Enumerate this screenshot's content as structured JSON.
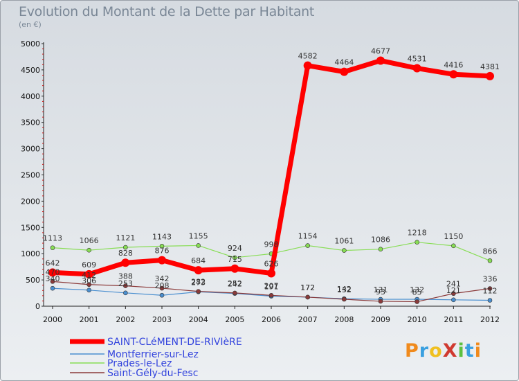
{
  "title": "Evolution du Montant de la Dette par Habitant",
  "subtitle": "(en €)",
  "logo": "ProXiti",
  "chart_data": {
    "type": "line",
    "x": [
      "2000",
      "2001",
      "2002",
      "2003",
      "2004",
      "2005",
      "2006",
      "2007",
      "2008",
      "2009",
      "2010",
      "2011",
      "2012"
    ],
    "ylim": [
      0,
      5000
    ],
    "yticks": [
      0,
      500,
      1000,
      1500,
      2000,
      2500,
      3000,
      3500,
      4000,
      4500,
      5000
    ],
    "grid": false,
    "legend": "bottom-left",
    "series": [
      {
        "name": "SAINT-CLéMENT-DE-RIVIèRE",
        "color": "#ff0000",
        "values": [
          642,
          609,
          828,
          876,
          684,
          715,
          626,
          4582,
          4464,
          4677,
          4531,
          4416,
          4381
        ],
        "labels": [
          "642",
          "609",
          "828",
          "876",
          "684",
          "715",
          "626",
          "4582",
          "4464",
          "4677",
          "4531",
          "4416",
          "4381"
        ]
      },
      {
        "name": "Montferrier-sur-Lez",
        "color": "#4a8fd0",
        "values": [
          340,
          306,
          253,
          208,
          273,
          242,
          191,
          172,
          142,
          131,
          132,
          121,
          112
        ],
        "labels": [
          "340",
          "306",
          "253",
          "208",
          "273",
          "242",
          "191",
          "172",
          "142",
          "131",
          "132",
          "121",
          "112"
        ]
      },
      {
        "name": "Prades-le-Lez",
        "color": "#88dd55",
        "values": [
          1113,
          1066,
          1121,
          1143,
          1155,
          924,
          998,
          1154,
          1061,
          1086,
          1218,
          1150,
          866
        ],
        "labels": [
          "1113",
          "1066",
          "1121",
          "1143",
          "1155",
          "924",
          "998",
          "1154",
          "1061",
          "1086",
          "1218",
          "1150",
          "866"
        ]
      },
      {
        "name": "Saint-Gély-du-Fesc",
        "color": "#8b3a3a",
        "values": [
          470,
          412,
          388,
          342,
          282,
          252,
          207,
          172,
          132,
          93,
          85,
          241,
          336
        ],
        "labels": [
          "470",
          "412",
          "388",
          "342",
          "282",
          "252",
          "207",
          "172",
          "132",
          "93",
          "85",
          "241",
          "336"
        ]
      }
    ]
  }
}
